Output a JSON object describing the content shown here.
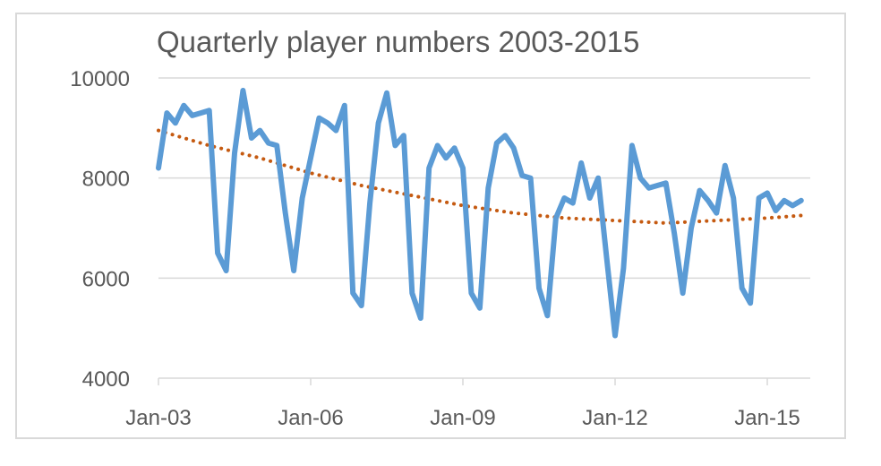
{
  "chart_data": {
    "type": "line",
    "title": "Quarterly player numbers 2003-2015",
    "xlabel": "",
    "ylabel": "",
    "ylim": [
      4000,
      10000
    ],
    "y_ticks": [
      "10000",
      "8000",
      "6000",
      "4000"
    ],
    "y_tick_values": [
      10000,
      8000,
      6000,
      4000
    ],
    "x_ticks": [
      "Jan-03",
      "Jan-06",
      "Jan-09",
      "Jan-12",
      "Jan-15"
    ],
    "x_tick_values": [
      "2003-01",
      "2006-01",
      "2009-01",
      "2012-01",
      "2015-01"
    ],
    "xlim": [
      "2003-01",
      "2015-09"
    ],
    "grid": true,
    "legend": "none",
    "series": [
      {
        "style": "solid",
        "color": "#5b9bd5",
        "points": [
          [
            "2003-01",
            8200
          ],
          [
            "2003-03",
            9300
          ],
          [
            "2003-05",
            9100
          ],
          [
            "2003-07",
            9450
          ],
          [
            "2003-09",
            9250
          ],
          [
            "2003-11",
            9300
          ],
          [
            "2004-01",
            9350
          ],
          [
            "2004-03",
            6500
          ],
          [
            "2004-05",
            6150
          ],
          [
            "2004-07",
            8500
          ],
          [
            "2004-09",
            9750
          ],
          [
            "2004-11",
            8800
          ],
          [
            "2005-01",
            8950
          ],
          [
            "2005-03",
            8700
          ],
          [
            "2005-05",
            8650
          ],
          [
            "2005-07",
            7300
          ],
          [
            "2005-09",
            6150
          ],
          [
            "2005-11",
            7600
          ],
          [
            "2006-01",
            8400
          ],
          [
            "2006-03",
            9200
          ],
          [
            "2006-05",
            9100
          ],
          [
            "2006-07",
            8950
          ],
          [
            "2006-09",
            9450
          ],
          [
            "2006-11",
            5700
          ],
          [
            "2007-01",
            5450
          ],
          [
            "2007-03",
            7500
          ],
          [
            "2007-05",
            9100
          ],
          [
            "2007-07",
            9700
          ],
          [
            "2007-09",
            8650
          ],
          [
            "2007-11",
            8850
          ],
          [
            "2008-01",
            5700
          ],
          [
            "2008-03",
            5200
          ],
          [
            "2008-05",
            8200
          ],
          [
            "2008-07",
            8650
          ],
          [
            "2008-09",
            8400
          ],
          [
            "2008-11",
            8600
          ],
          [
            "2009-01",
            8200
          ],
          [
            "2009-03",
            5700
          ],
          [
            "2009-05",
            5400
          ],
          [
            "2009-07",
            7800
          ],
          [
            "2009-09",
            8700
          ],
          [
            "2009-11",
            8850
          ],
          [
            "2010-01",
            8600
          ],
          [
            "2010-03",
            8050
          ],
          [
            "2010-05",
            8000
          ],
          [
            "2010-07",
            5800
          ],
          [
            "2010-09",
            5250
          ],
          [
            "2010-11",
            7200
          ],
          [
            "2011-01",
            7600
          ],
          [
            "2011-03",
            7500
          ],
          [
            "2011-05",
            8300
          ],
          [
            "2011-07",
            7600
          ],
          [
            "2011-09",
            8000
          ],
          [
            "2011-11",
            6400
          ],
          [
            "2012-01",
            4850
          ],
          [
            "2012-03",
            6200
          ],
          [
            "2012-05",
            8650
          ],
          [
            "2012-07",
            8000
          ],
          [
            "2012-09",
            7800
          ],
          [
            "2012-11",
            7850
          ],
          [
            "2013-01",
            7900
          ],
          [
            "2013-03",
            6900
          ],
          [
            "2013-05",
            5700
          ],
          [
            "2013-07",
            7000
          ],
          [
            "2013-09",
            7750
          ],
          [
            "2013-11",
            7550
          ],
          [
            "2014-01",
            7300
          ],
          [
            "2014-03",
            8250
          ],
          [
            "2014-05",
            7600
          ],
          [
            "2014-07",
            5800
          ],
          [
            "2014-09",
            5500
          ],
          [
            "2014-11",
            7600
          ],
          [
            "2015-01",
            7700
          ],
          [
            "2015-03",
            7350
          ],
          [
            "2015-05",
            7550
          ],
          [
            "2015-07",
            7450
          ],
          [
            "2015-09",
            7550
          ]
        ]
      },
      {
        "style": "dotted",
        "color": "#c55a11",
        "points": [
          [
            "2003-01",
            8950
          ],
          [
            "2004-01",
            8650
          ],
          [
            "2005-01",
            8400
          ],
          [
            "2006-01",
            8100
          ],
          [
            "2007-01",
            7850
          ],
          [
            "2008-01",
            7650
          ],
          [
            "2009-01",
            7450
          ],
          [
            "2010-01",
            7300
          ],
          [
            "2011-01",
            7200
          ],
          [
            "2012-01",
            7150
          ],
          [
            "2013-01",
            7100
          ],
          [
            "2014-01",
            7150
          ],
          [
            "2015-01",
            7200
          ],
          [
            "2015-09",
            7250
          ]
        ]
      }
    ]
  }
}
